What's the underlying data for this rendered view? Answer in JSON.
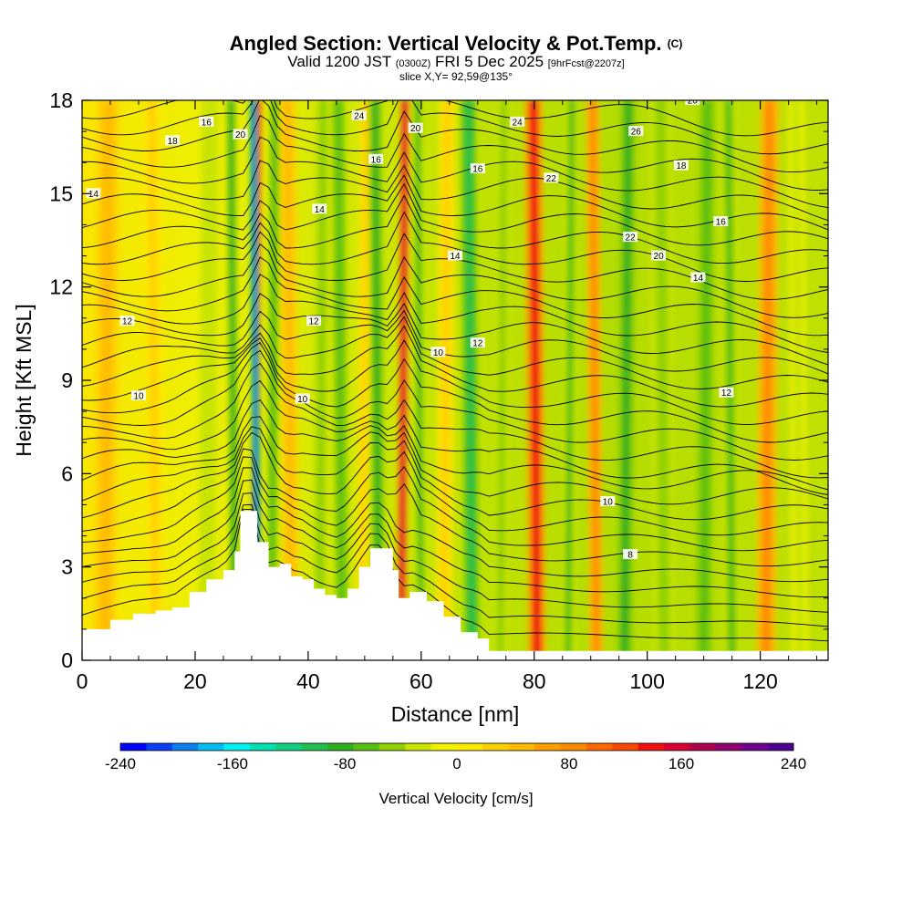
{
  "header": {
    "title": "Angled Section: Vertical Velocity & Pot.Temp.",
    "title_suffix": "(C)",
    "valid_prefix": "Valid 1200 JST",
    "valid_utc": "(0300Z)",
    "valid_date": "FRI 5 Dec 2025",
    "forecast_tag": "[9hrFcst@2207z]",
    "slice": "slice X,Y= 92,59@135°"
  },
  "chart_data": {
    "type": "heatmap",
    "xlabel": "Distance [nm]",
    "ylabel": "Height [Kft MSL]",
    "xlim": [
      0,
      132
    ],
    "ylim": [
      0,
      18
    ],
    "x_ticks": [
      "0",
      "20",
      "40",
      "60",
      "80",
      "100",
      "120"
    ],
    "y_ticks": [
      "0",
      "3",
      "6",
      "9",
      "12",
      "15",
      "18"
    ],
    "grid": false,
    "colorbar": {
      "label": "Vertical Velocity [cm/s]",
      "placement": "bottom",
      "range": [
        -240,
        240
      ],
      "tick_labels": [
        "-240",
        "-160",
        "-80",
        "0",
        "80",
        "160",
        "240"
      ],
      "colors": [
        "#0000ff",
        "#0b3ff7",
        "#0a80f0",
        "#00bcf0",
        "#00f0f0",
        "#00e0b0",
        "#10d080",
        "#20c050",
        "#30b020",
        "#58c010",
        "#90d000",
        "#c8e400",
        "#f0f000",
        "#ffe800",
        "#ffd000",
        "#ffbb00",
        "#ffa000",
        "#ff8a00",
        "#ff6a00",
        "#f84800",
        "#f01010",
        "#d80030",
        "#b00050",
        "#900070",
        "#700090",
        "#500090"
      ]
    },
    "vertical_velocity_bands": [
      {
        "x": 4,
        "w": 4,
        "vv": 50
      },
      {
        "x": 13,
        "w": 3,
        "vv": 30
      },
      {
        "x": 22,
        "w": 3,
        "vv": -35
      },
      {
        "x": 27,
        "w": 1.8,
        "vv": -80
      },
      {
        "x": 30.5,
        "w": 1.5,
        "vv": 140
      },
      {
        "x": 31,
        "w": 1.5,
        "vv": -190
      },
      {
        "x": 33.5,
        "w": 2,
        "vv": -70
      },
      {
        "x": 37,
        "w": 3,
        "vv": 50
      },
      {
        "x": 42,
        "w": 3,
        "vv": -40
      },
      {
        "x": 46,
        "w": 2.5,
        "vv": -70
      },
      {
        "x": 49.5,
        "w": 2,
        "vv": 30
      },
      {
        "x": 52.5,
        "w": 2.5,
        "vv": -90
      },
      {
        "x": 56.5,
        "w": 1.8,
        "vv": 150
      },
      {
        "x": 60,
        "w": 2.5,
        "vv": -60
      },
      {
        "x": 64,
        "w": 3,
        "vv": 30
      },
      {
        "x": 69,
        "w": 2.5,
        "vv": -110
      },
      {
        "x": 74,
        "w": 2.5,
        "vv": -50
      },
      {
        "x": 80.5,
        "w": 3.2,
        "vv": 130
      },
      {
        "x": 86,
        "w": 2.5,
        "vv": -60
      },
      {
        "x": 91,
        "w": 2.5,
        "vv": 80
      },
      {
        "x": 96,
        "w": 3,
        "vv": -80
      },
      {
        "x": 103,
        "w": 4,
        "vv": -50
      },
      {
        "x": 110,
        "w": 3,
        "vv": -70
      },
      {
        "x": 115,
        "w": 3,
        "vv": -60
      },
      {
        "x": 121,
        "w": 3.5,
        "vv": 80
      },
      {
        "x": 127,
        "w": 3,
        "vv": -30
      }
    ],
    "terrain": {
      "x": [
        0,
        5,
        9,
        13,
        16,
        19,
        22,
        25,
        27,
        28,
        30,
        31,
        33,
        35,
        37,
        39,
        41,
        43,
        45,
        47,
        49,
        51,
        53,
        55,
        56,
        58,
        61,
        64,
        67,
        70,
        72,
        132
      ],
      "height": [
        1.0,
        1.3,
        1.5,
        1.6,
        1.7,
        2.2,
        2.6,
        2.9,
        3.5,
        4.8,
        4.8,
        3.8,
        3.0,
        3.1,
        2.7,
        2.6,
        2.3,
        2.1,
        2.0,
        2.3,
        3.0,
        3.6,
        3.6,
        2.9,
        2.0,
        2.2,
        1.9,
        1.4,
        0.9,
        0.7,
        0.3,
        0.3
      ]
    },
    "contour_labels": [
      "8",
      "10",
      "10",
      "10",
      "10",
      "12",
      "12",
      "12",
      "12",
      "14",
      "14",
      "14",
      "14",
      "16",
      "16",
      "16",
      "16",
      "18",
      "18",
      "20",
      "20",
      "20",
      "22",
      "22",
      "24",
      "24",
      "26",
      "26"
    ]
  }
}
